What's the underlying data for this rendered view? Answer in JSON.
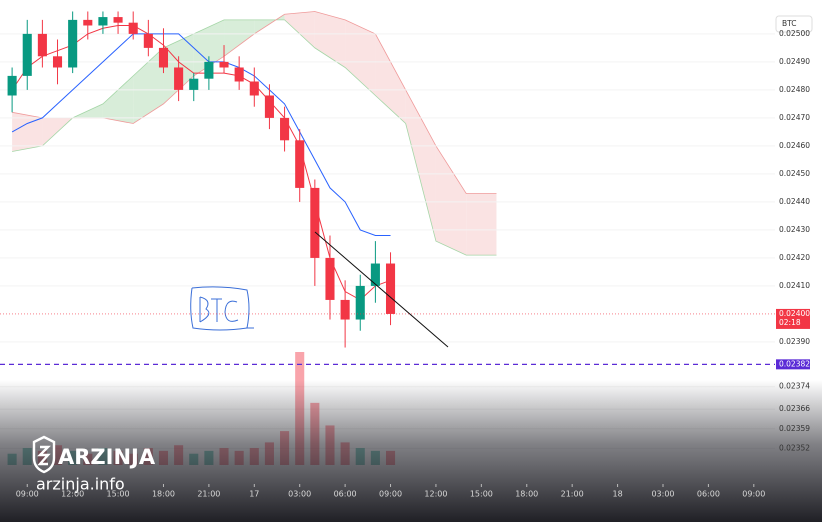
{
  "chart_data": {
    "type": "candlestick",
    "symbol": "BTC",
    "x": [
      -1,
      0,
      1,
      2,
      3,
      4,
      5,
      6,
      7,
      8,
      9,
      10,
      11,
      12,
      13,
      14,
      15,
      16,
      17,
      18,
      19,
      20,
      21,
      22,
      23,
      24
    ],
    "open": [
      0.02478,
      0.02485,
      0.025,
      0.02492,
      0.02488,
      0.02505,
      0.02503,
      0.02506,
      0.02504,
      0.025,
      0.02495,
      0.02488,
      0.0248,
      0.02484,
      0.0249,
      0.02488,
      0.02483,
      0.02478,
      0.0247,
      0.02462,
      0.02445,
      0.0242,
      0.02405,
      0.02398,
      0.0241,
      0.02418
    ],
    "high": [
      0.02488,
      0.02505,
      0.02505,
      0.02498,
      0.02508,
      0.02508,
      0.02508,
      0.02508,
      0.02508,
      0.02505,
      0.02502,
      0.02492,
      0.02486,
      0.02492,
      0.02496,
      0.02492,
      0.02488,
      0.02482,
      0.02474,
      0.02466,
      0.02448,
      0.02428,
      0.02412,
      0.02414,
      0.02426,
      0.02422
    ],
    "low": [
      0.02472,
      0.0248,
      0.02488,
      0.02482,
      0.02486,
      0.02498,
      0.025,
      0.025,
      0.02498,
      0.02492,
      0.02486,
      0.02476,
      0.02476,
      0.0248,
      0.02486,
      0.0248,
      0.02474,
      0.02466,
      0.02458,
      0.0244,
      0.0241,
      0.02398,
      0.02388,
      0.02394,
      0.02404,
      0.02396
    ],
    "close": [
      0.02485,
      0.025,
      0.02492,
      0.02488,
      0.02505,
      0.02503,
      0.02506,
      0.02504,
      0.025,
      0.02495,
      0.02488,
      0.0248,
      0.02484,
      0.0249,
      0.02488,
      0.02483,
      0.02478,
      0.0247,
      0.02462,
      0.02445,
      0.0242,
      0.02405,
      0.02398,
      0.0241,
      0.02418,
      0.024
    ],
    "volume": [
      4,
      6,
      5,
      7,
      5,
      4,
      6,
      5,
      4,
      6,
      5,
      7,
      4,
      5,
      6,
      5,
      6,
      8,
      12,
      40,
      22,
      14,
      8,
      6,
      5,
      5
    ],
    "up_color": "#089981",
    "down_color": "#f23645",
    "lines": [
      {
        "color": "#2962ff",
        "values": [
          0.02465,
          0.02468,
          0.0247,
          0.02475,
          0.0248,
          0.02485,
          0.0249,
          0.02495,
          0.025,
          0.025,
          0.025,
          0.025,
          0.02495,
          0.0249,
          0.0249,
          0.02488,
          0.02485,
          0.0248,
          0.02475,
          0.02465,
          0.02455,
          0.02445,
          0.0244,
          0.0243,
          0.02428,
          0.02428
        ]
      },
      {
        "color": "#f23645",
        "values": [
          0.0248,
          0.02488,
          0.02492,
          0.02494,
          0.02496,
          0.025,
          0.02502,
          0.02503,
          0.02503,
          0.025,
          0.02496,
          0.0249,
          0.02486,
          0.02486,
          0.02486,
          0.02485,
          0.02482,
          0.02476,
          0.0247,
          0.0246,
          0.0244,
          0.0242,
          0.02408,
          0.02405,
          0.0241,
          0.02412
        ]
      }
    ],
    "cloud": {
      "x": [
        -1,
        1,
        3,
        5,
        7,
        9,
        11,
        13,
        15,
        17,
        19,
        21,
        23,
        25,
        27,
        29,
        31
      ],
      "span_a": [
        0.02458,
        0.0246,
        0.0247,
        0.02475,
        0.02485,
        0.02495,
        0.025,
        0.02505,
        0.02505,
        0.02505,
        0.02495,
        0.02488,
        0.02478,
        0.02468,
        0.02426,
        0.02421,
        0.02421
      ],
      "span_b": [
        0.02472,
        0.0247,
        0.0247,
        0.0247,
        0.02468,
        0.02475,
        0.02485,
        0.02492,
        0.025,
        0.02507,
        0.02508,
        0.02505,
        0.025,
        0.0248,
        0.0246,
        0.02443,
        0.02443
      ],
      "up_color": "#c8e6c9",
      "down_color": "#f8d7d7"
    },
    "xlim": [
      -1.8,
      49.4
    ],
    "ylim": [
      0.023407,
      0.025071
    ],
    "xticks": [
      {
        "value": 0,
        "label": "09:00"
      },
      {
        "value": 3,
        "label": "12:00"
      },
      {
        "value": 6,
        "label": "15:00"
      },
      {
        "value": 9,
        "label": "18:00"
      },
      {
        "value": 12,
        "label": "21:00"
      },
      {
        "value": 15,
        "label": "17"
      },
      {
        "value": 18,
        "label": "03:00"
      },
      {
        "value": 21,
        "label": "06:00"
      },
      {
        "value": 24,
        "label": "09:00"
      },
      {
        "value": 27,
        "label": "12:00"
      },
      {
        "value": 30,
        "label": "15:00"
      },
      {
        "value": 33,
        "label": "18:00"
      },
      {
        "value": 36,
        "label": "21:00"
      },
      {
        "value": 39,
        "label": "18"
      },
      {
        "value": 42,
        "label": "03:00"
      },
      {
        "value": 45,
        "label": "06:00"
      },
      {
        "value": 48,
        "label": "09:00"
      }
    ],
    "yticks": [
      {
        "value": 0.025,
        "label": "0.02500"
      },
      {
        "value": 0.0249,
        "label": "0.02490"
      },
      {
        "value": 0.0248,
        "label": "0.02480"
      },
      {
        "value": 0.0247,
        "label": "0.02470"
      },
      {
        "value": 0.0246,
        "label": "0.02460"
      },
      {
        "value": 0.0245,
        "label": "0.02450"
      },
      {
        "value": 0.0244,
        "label": "0.02440"
      },
      {
        "value": 0.0243,
        "label": "0.02430"
      },
      {
        "value": 0.0242,
        "label": "0.02420"
      },
      {
        "value": 0.0241,
        "label": "0.02410"
      },
      {
        "value": 0.0239,
        "label": "0.02390"
      },
      {
        "value": 0.02374,
        "label": "0.02374"
      },
      {
        "value": 0.02366,
        "label": "0.02366"
      },
      {
        "value": 0.02359,
        "label": "0.02359"
      },
      {
        "value": 0.02352,
        "label": "0.02352"
      }
    ],
    "price_lines": [
      {
        "value": 0.024,
        "label": "0.02400",
        "countdown": "02:18",
        "color": "#f23645"
      },
      {
        "value": 0.02382,
        "label": "0.02382",
        "color": "#5b2bd6"
      }
    ],
    "watermark": {
      "name": "ARZINJA",
      "site": "arzinja.info"
    }
  }
}
